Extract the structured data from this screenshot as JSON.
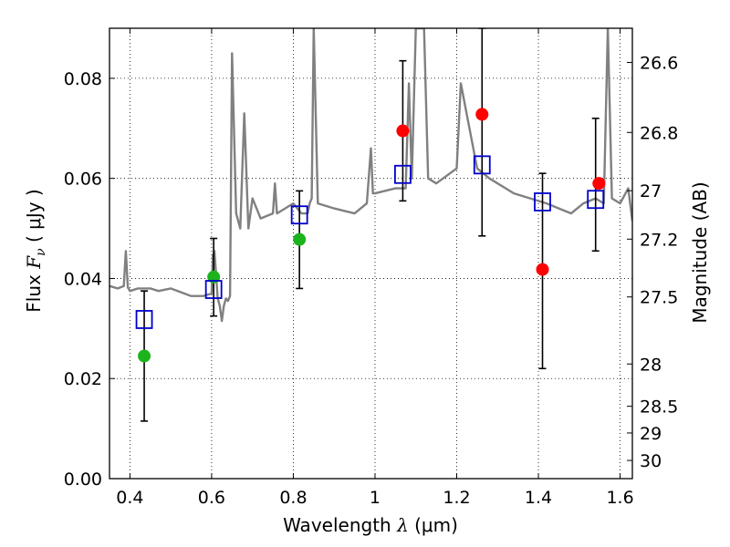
{
  "chart_data": {
    "type": "scatter",
    "xlabel": {
      "prefix": "Wavelength  ",
      "symbol": "λ",
      "unit": " (μm)"
    },
    "ylabel": {
      "prefix": "Flux  ",
      "symbol": "F",
      "sub": "ν",
      "unit": "  ( μJy )"
    },
    "y2label": "Magnitude (AB)",
    "xlim": [
      0.35,
      1.63
    ],
    "ylim": [
      0.0,
      0.09
    ],
    "grid": true,
    "x_ticks": [
      {
        "v": 0.4,
        "label": "0.4"
      },
      {
        "v": 0.6,
        "label": "0.6"
      },
      {
        "v": 0.8,
        "label": "0.8"
      },
      {
        "v": 1.0,
        "label": "1"
      },
      {
        "v": 1.2,
        "label": "1.2"
      },
      {
        "v": 1.4,
        "label": "1.4"
      },
      {
        "v": 1.6,
        "label": "1.6"
      }
    ],
    "y_ticks": [
      {
        "v": 0.0,
        "label": "0.00"
      },
      {
        "v": 0.02,
        "label": "0.02"
      },
      {
        "v": 0.04,
        "label": "0.04"
      },
      {
        "v": 0.06,
        "label": "0.06"
      },
      {
        "v": 0.08,
        "label": "0.08"
      }
    ],
    "y2_ticks": [
      {
        "mag": 26.6,
        "label": "26.6"
      },
      {
        "mag": 26.8,
        "label": "26.8"
      },
      {
        "mag": 27.0,
        "label": "27"
      },
      {
        "mag": 27.2,
        "label": "27.2"
      },
      {
        "mag": 27.5,
        "label": "27.5"
      },
      {
        "mag": 28.0,
        "label": "28"
      },
      {
        "mag": 28.5,
        "label": "28.5"
      },
      {
        "mag": 29.0,
        "label": "29"
      },
      {
        "mag": 30.0,
        "label": "30"
      }
    ],
    "colors": {
      "model": "#808080",
      "green": "#1db31d",
      "red": "#ff0000",
      "square": "#0000cc",
      "errorbar": "#000000"
    },
    "series": [
      {
        "kind": "line",
        "x": [
          0.35,
          0.37,
          0.385,
          0.39,
          0.395,
          0.4,
          0.42,
          0.45,
          0.47,
          0.5,
          0.55,
          0.58,
          0.6,
          0.603,
          0.607,
          0.615,
          0.62,
          0.625,
          0.63,
          0.635,
          0.64,
          0.645,
          0.65,
          0.66,
          0.67,
          0.68,
          0.69,
          0.7,
          0.72,
          0.75,
          0.755,
          0.76,
          0.78,
          0.8,
          0.82,
          0.835,
          0.84,
          0.845,
          0.85,
          0.86,
          0.9,
          0.95,
          0.98,
          0.99,
          0.995,
          1.0,
          1.05,
          1.075,
          1.083,
          1.09,
          1.1,
          1.12,
          1.13,
          1.15,
          1.2,
          1.21,
          1.25,
          1.28,
          1.32,
          1.34,
          1.38,
          1.42,
          1.45,
          1.48,
          1.51,
          1.54,
          1.56,
          1.57,
          1.58,
          1.6,
          1.62,
          1.63
        ],
        "y": [
          0.0385,
          0.038,
          0.0385,
          0.0455,
          0.0382,
          0.0375,
          0.038,
          0.038,
          0.0375,
          0.038,
          0.0365,
          0.0365,
          0.037,
          0.0445,
          0.0455,
          0.036,
          0.0345,
          0.0315,
          0.0345,
          0.036,
          0.0355,
          0.0365,
          0.085,
          0.053,
          0.05,
          0.073,
          0.05,
          0.056,
          0.052,
          0.053,
          0.059,
          0.053,
          0.054,
          0.055,
          0.053,
          0.053,
          0.055,
          0.056,
          0.09,
          0.055,
          0.054,
          0.053,
          0.055,
          0.066,
          0.057,
          0.057,
          0.058,
          0.058,
          0.079,
          0.06,
          0.09,
          0.09,
          0.06,
          0.059,
          0.062,
          0.079,
          0.062,
          0.06,
          0.058,
          0.057,
          0.056,
          0.055,
          0.054,
          0.053,
          0.055,
          0.056,
          0.055,
          0.09,
          0.056,
          0.055,
          0.058,
          0.0515
        ]
      },
      {
        "kind": "points",
        "marker": "circle",
        "color": "green",
        "x": [
          0.435,
          0.605,
          0.815
        ],
        "y": [
          0.0245,
          0.0403,
          0.0478
        ]
      },
      {
        "kind": "points",
        "marker": "circle",
        "color": "red",
        "x": [
          1.068,
          1.262,
          1.41,
          1.548
        ],
        "y": [
          0.0695,
          0.0728,
          0.0418,
          0.059
        ]
      },
      {
        "kind": "points",
        "marker": "square",
        "color": "square",
        "x": [
          0.435,
          0.605,
          0.815,
          1.068,
          1.262,
          1.41,
          1.54
        ],
        "y": [
          0.0318,
          0.0378,
          0.0527,
          0.0608,
          0.0627,
          0.0553,
          0.0558
        ],
        "yerr_low": [
          0.0115,
          0.0325,
          0.038,
          0.0555,
          0.0485,
          0.022,
          0.0455
        ],
        "yerr_high": [
          0.0375,
          0.048,
          0.0575,
          0.0835,
          0.09,
          0.061,
          0.072
        ]
      }
    ]
  }
}
